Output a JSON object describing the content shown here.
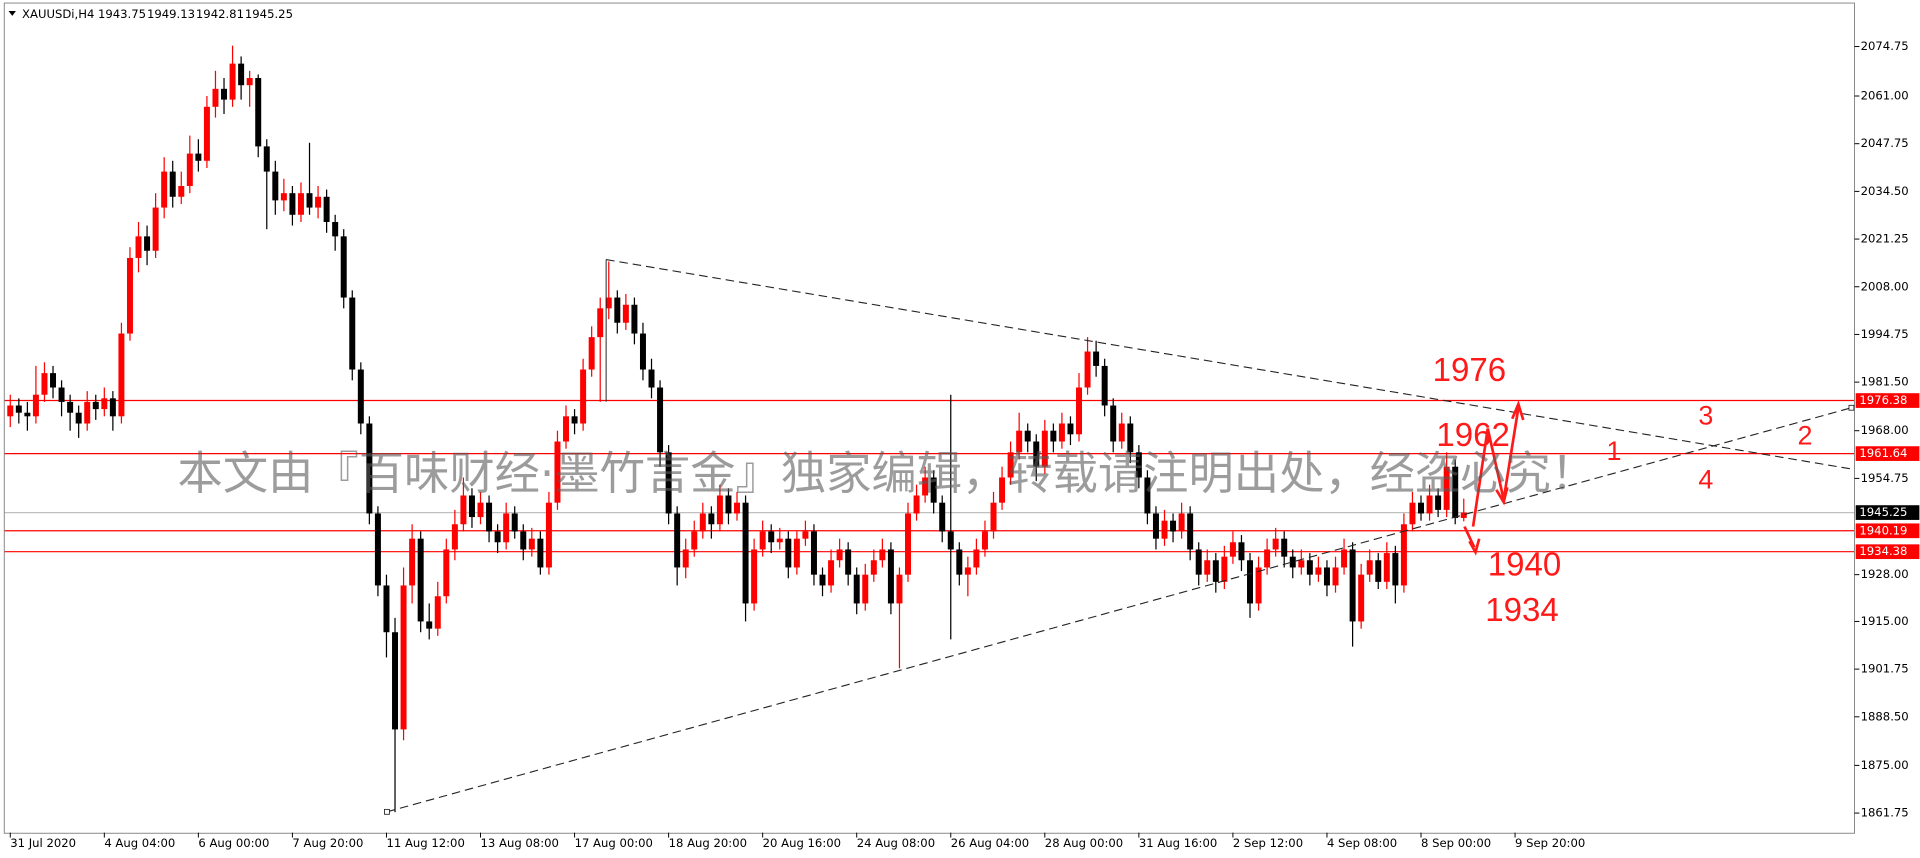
{
  "chart_data": {
    "type": "candlestick",
    "header": {
      "symbol": "XAUUSDi,H4",
      "ohlc": [
        1943.75,
        1949.13,
        1942.81,
        1945.25
      ]
    },
    "watermark": "本文由『百味财经·墨竹言金』独家编辑，转载请注明出处，经盗必究！",
    "annotations": [
      "1976",
      "1962",
      "1940",
      "1934",
      "1",
      "2",
      "3",
      "4"
    ],
    "up_color": "#ff0000",
    "down_color": "#000000",
    "level_color": "#ff0000",
    "levels": [
      1976.38,
      1961.64,
      1940.19,
      1934.38
    ],
    "last_price": 1945.25,
    "xlim": [
      -0.7,
      215.7
    ],
    "xticks": [
      {
        "value": 0,
        "label": "31 Jul 2020"
      },
      {
        "value": 11,
        "label": "4 Aug 04:00"
      },
      {
        "value": 22,
        "label": "6 Aug 00:00"
      },
      {
        "value": 33,
        "label": "7 Aug 20:00"
      },
      {
        "value": 44,
        "label": "11 Aug 12:00"
      },
      {
        "value": 55,
        "label": "13 Aug 08:00"
      },
      {
        "value": 66,
        "label": "17 Aug 00:00"
      },
      {
        "value": 77,
        "label": "18 Aug 20:00"
      },
      {
        "value": 88,
        "label": "20 Aug 16:00"
      },
      {
        "value": 99,
        "label": "24 Aug 08:00"
      },
      {
        "value": 110,
        "label": "26 Aug 04:00"
      },
      {
        "value": 121,
        "label": "28 Aug 00:00"
      },
      {
        "value": 132,
        "label": "31 Aug 16:00"
      },
      {
        "value": 143,
        "label": "2 Sep 12:00"
      },
      {
        "value": 154,
        "label": "4 Sep 08:00"
      },
      {
        "value": 165,
        "label": "8 Sep 00:00"
      },
      {
        "value": 176,
        "label": "9 Sep 20:00"
      }
    ],
    "ylim": [
      1856.31,
      2087.68
    ],
    "yticks": [
      2074.75,
      {
        "value": 2061,
        "label": "2061.00"
      },
      2047.75,
      {
        "value": 2034.5,
        "label": "2034.50"
      },
      2021.25,
      {
        "value": 2008,
        "label": "2008.00"
      },
      1994.75,
      {
        "value": 1981.5,
        "label": "1981.50"
      },
      {
        "value": 1968,
        "label": "1968.00"
      },
      1954.75,
      {
        "value": 1928,
        "label": "1928.00"
      },
      {
        "value": 1915,
        "label": "1915.00"
      },
      1901.75,
      {
        "value": 1888.5,
        "label": "1888.50"
      },
      {
        "value": 1875,
        "label": "1875.00"
      },
      1861.75
    ],
    "ohlc": [
      [
        1972,
        1978,
        1969,
        1975
      ],
      [
        1975,
        1977,
        1970,
        1973
      ],
      [
        1973,
        1976,
        1968,
        1972
      ],
      [
        1972,
        1986,
        1970,
        1978
      ],
      [
        1978,
        1987,
        1976,
        1984
      ],
      [
        1984,
        1986,
        1977,
        1980
      ],
      [
        1980,
        1982,
        1972,
        1976
      ],
      [
        1976,
        1978,
        1968,
        1973
      ],
      [
        1973,
        1975,
        1966,
        1970
      ],
      [
        1970,
        1979,
        1968,
        1976
      ],
      [
        1976,
        1978,
        1971,
        1974
      ],
      [
        1974,
        1980,
        1972,
        1977
      ],
      [
        1977,
        1979,
        1968,
        1972
      ],
      [
        1972,
        1998,
        1970,
        1995
      ],
      [
        1995,
        2019,
        1993,
        2016
      ],
      [
        2016,
        2026,
        2012,
        2022
      ],
      [
        2022,
        2025,
        2014,
        2018
      ],
      [
        2018,
        2034,
        2016,
        2030
      ],
      [
        2030,
        2044,
        2027,
        2040
      ],
      [
        2040,
        2043,
        2030,
        2033
      ],
      [
        2033,
        2040,
        2031,
        2036
      ],
      [
        2036,
        2050,
        2034,
        2045
      ],
      [
        2045,
        2049,
        2040,
        2043
      ],
      [
        2043,
        2061,
        2041,
        2058
      ],
      [
        2058,
        2068,
        2055,
        2063
      ],
      [
        2063,
        2066,
        2056,
        2060
      ],
      [
        2060,
        2075,
        2058,
        2070
      ],
      [
        2070,
        2072,
        2060,
        2064
      ],
      [
        2064,
        2068,
        2058,
        2066
      ],
      [
        2066,
        2067,
        2044,
        2047
      ],
      [
        2047,
        2049,
        2024,
        2040
      ],
      [
        2040,
        2043,
        2028,
        2032
      ],
      [
        2032,
        2038,
        2029,
        2034
      ],
      [
        2034,
        2036,
        2025,
        2028
      ],
      [
        2028,
        2037,
        2026,
        2034
      ],
      [
        2034,
        2048,
        2028,
        2030
      ],
      [
        2030,
        2036,
        2027,
        2033
      ],
      [
        2033,
        2035,
        2023,
        2026
      ],
      [
        2026,
        2028,
        2018,
        2022
      ],
      [
        2022,
        2024,
        2002,
        2005
      ],
      [
        2005,
        2007,
        1982,
        1985
      ],
      [
        1985,
        1987,
        1967,
        1970
      ],
      [
        1970,
        1972,
        1942,
        1945
      ],
      [
        1945,
        1947,
        1922,
        1925
      ],
      [
        1925,
        1928,
        1905,
        1912
      ],
      [
        1912,
        1916,
        1862,
        1885
      ],
      [
        1885,
        1930,
        1882,
        1925
      ],
      [
        1925,
        1942,
        1920,
        1938
      ],
      [
        1938,
        1940,
        1912,
        1915
      ],
      [
        1915,
        1920,
        1910,
        1913
      ],
      [
        1913,
        1926,
        1911,
        1922
      ],
      [
        1922,
        1938,
        1920,
        1935
      ],
      [
        1935,
        1946,
        1932,
        1942
      ],
      [
        1942,
        1955,
        1940,
        1950
      ],
      [
        1950,
        1952,
        1941,
        1944
      ],
      [
        1944,
        1951,
        1942,
        1948
      ],
      [
        1948,
        1950,
        1937,
        1940
      ],
      [
        1940,
        1942,
        1934,
        1937
      ],
      [
        1937,
        1948,
        1935,
        1945
      ],
      [
        1945,
        1947,
        1938,
        1940
      ],
      [
        1940,
        1942,
        1932,
        1935
      ],
      [
        1935,
        1941,
        1933,
        1938
      ],
      [
        1938,
        1940,
        1928,
        1930
      ],
      [
        1930,
        1951,
        1928,
        1948
      ],
      [
        1948,
        1968,
        1946,
        1965
      ],
      [
        1965,
        1975,
        1963,
        1972
      ],
      [
        1972,
        1974,
        1967,
        1970
      ],
      [
        1970,
        1988,
        1968,
        1985
      ],
      [
        1985,
        1997,
        1983,
        1994
      ],
      [
        1994,
        2005,
        1976,
        2002
      ],
      [
        2002,
        2015,
        1999,
        2005
      ],
      [
        2005,
        2007,
        1995,
        1998
      ],
      [
        1998,
        2006,
        1996,
        2003
      ],
      [
        2003,
        2005,
        1992,
        1995
      ],
      [
        1995,
        1998,
        1982,
        1985
      ],
      [
        1985,
        1988,
        1977,
        1980
      ],
      [
        1980,
        1982,
        1958,
        1962
      ],
      [
        1962,
        1964,
        1942,
        1945
      ],
      [
        1945,
        1947,
        1925,
        1930
      ],
      [
        1930,
        1938,
        1927,
        1935
      ],
      [
        1935,
        1943,
        1933,
        1940
      ],
      [
        1940,
        1948,
        1938,
        1945
      ],
      [
        1945,
        1947,
        1938,
        1942
      ],
      [
        1942,
        1953,
        1940,
        1950
      ],
      [
        1950,
        1952,
        1942,
        1945
      ],
      [
        1945,
        1951,
        1943,
        1948
      ],
      [
        1948,
        1950,
        1915,
        1920
      ],
      [
        1920,
        1938,
        1918,
        1935
      ],
      [
        1935,
        1943,
        1933,
        1940
      ],
      [
        1940,
        1942,
        1934,
        1937
      ],
      [
        1937,
        1941,
        1935,
        1938
      ],
      [
        1938,
        1940,
        1927,
        1930
      ],
      [
        1930,
        1940,
        1928,
        1938
      ],
      [
        1938,
        1943,
        1936,
        1940
      ],
      [
        1940,
        1942,
        1925,
        1928
      ],
      [
        1928,
        1930,
        1922,
        1925
      ],
      [
        1925,
        1935,
        1923,
        1932
      ],
      [
        1932,
        1938,
        1930,
        1935
      ],
      [
        1935,
        1937,
        1925,
        1928
      ],
      [
        1928,
        1930,
        1917,
        1920
      ],
      [
        1920,
        1931,
        1918,
        1928
      ],
      [
        1928,
        1935,
        1926,
        1932
      ],
      [
        1932,
        1938,
        1930,
        1935
      ],
      [
        1935,
        1937,
        1917,
        1920
      ],
      [
        1920,
        1930,
        1902,
        1928
      ],
      [
        1928,
        1948,
        1926,
        1945
      ],
      [
        1945,
        1953,
        1943,
        1950
      ],
      [
        1950,
        1958,
        1948,
        1955
      ],
      [
        1955,
        1957,
        1945,
        1948
      ],
      [
        1948,
        1950,
        1937,
        1940
      ],
      [
        1940,
        1978,
        1910,
        1935
      ],
      [
        1935,
        1937,
        1925,
        1928
      ],
      [
        1928,
        1933,
        1922,
        1930
      ],
      [
        1930,
        1938,
        1928,
        1935
      ],
      [
        1935,
        1943,
        1933,
        1940
      ],
      [
        1940,
        1951,
        1938,
        1948
      ],
      [
        1948,
        1958,
        1946,
        1955
      ],
      [
        1955,
        1965,
        1953,
        1962
      ],
      [
        1962,
        1973,
        1960,
        1968
      ],
      [
        1968,
        1970,
        1962,
        1965
      ],
      [
        1965,
        1967,
        1954,
        1958
      ],
      [
        1958,
        1971,
        1956,
        1968
      ],
      [
        1968,
        1970,
        1962,
        1965
      ],
      [
        1965,
        1973,
        1963,
        1970
      ],
      [
        1970,
        1972,
        1964,
        1967
      ],
      [
        1967,
        1984,
        1965,
        1980
      ],
      [
        1980,
        1994,
        1978,
        1990
      ],
      [
        1990,
        1993,
        1983,
        1986
      ],
      [
        1986,
        1988,
        1972,
        1975
      ],
      [
        1975,
        1977,
        1962,
        1965
      ],
      [
        1965,
        1973,
        1963,
        1970
      ],
      [
        1970,
        1972,
        1959,
        1962
      ],
      [
        1962,
        1964,
        1952,
        1955
      ],
      [
        1955,
        1957,
        1942,
        1945
      ],
      [
        1945,
        1947,
        1935,
        1938
      ],
      [
        1938,
        1946,
        1936,
        1943
      ],
      [
        1943,
        1945,
        1937,
        1940
      ],
      [
        1940,
        1948,
        1938,
        1945
      ],
      [
        1945,
        1947,
        1932,
        1935
      ],
      [
        1935,
        1937,
        1925,
        1928
      ],
      [
        1928,
        1935,
        1926,
        1932
      ],
      [
        1932,
        1934,
        1923,
        1926
      ],
      [
        1926,
        1936,
        1924,
        1933
      ],
      [
        1933,
        1940,
        1931,
        1937
      ],
      [
        1937,
        1939,
        1929,
        1932
      ],
      [
        1932,
        1934,
        1916,
        1920
      ],
      [
        1920,
        1933,
        1918,
        1930
      ],
      [
        1930,
        1938,
        1928,
        1935
      ],
      [
        1935,
        1941,
        1933,
        1938
      ],
      [
        1938,
        1940,
        1930,
        1933
      ],
      [
        1933,
        1935,
        1927,
        1930
      ],
      [
        1930,
        1935,
        1928,
        1932
      ],
      [
        1932,
        1934,
        1925,
        1928
      ],
      [
        1928,
        1933,
        1926,
        1930
      ],
      [
        1930,
        1932,
        1922,
        1925
      ],
      [
        1925,
        1933,
        1923,
        1930
      ],
      [
        1930,
        1938,
        1928,
        1935
      ],
      [
        1935,
        1937,
        1908,
        1915
      ],
      [
        1915,
        1931,
        1913,
        1928
      ],
      [
        1928,
        1935,
        1926,
        1932
      ],
      [
        1932,
        1934,
        1924,
        1926
      ],
      [
        1926,
        1937,
        1924,
        1934
      ],
      [
        1934,
        1936,
        1920,
        1925
      ],
      [
        1925,
        1945,
        1923,
        1942
      ],
      [
        1942,
        1951,
        1940,
        1948
      ],
      [
        1948,
        1950,
        1943,
        1945
      ],
      [
        1945,
        1953,
        1943,
        1950
      ],
      [
        1950,
        1952,
        1944,
        1946
      ],
      [
        1946,
        1962,
        1944,
        1958
      ],
      [
        1958,
        1960,
        1942,
        1943.75
      ],
      [
        1943.75,
        1949.13,
        1942.81,
        1945.25
      ]
    ]
  }
}
